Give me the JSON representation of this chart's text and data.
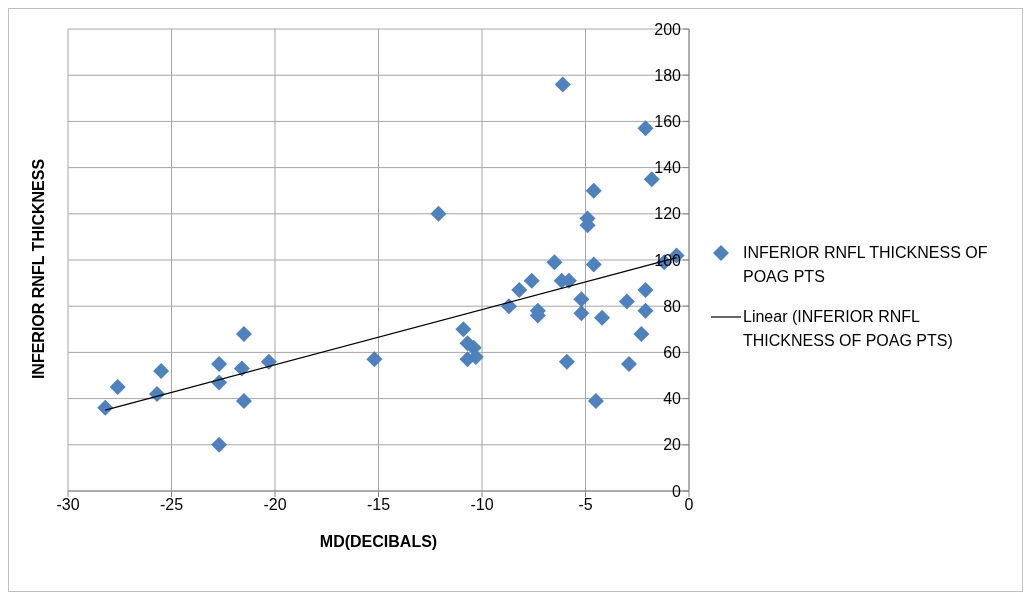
{
  "chart_data": {
    "type": "scatter",
    "xlabel": "MD(DECIBALS)",
    "ylabel": "INFERIOR RNFL THICKNESS",
    "xlim": [
      -30,
      0
    ],
    "xticks": [
      -30,
      -25,
      -20,
      -15,
      -10,
      -5,
      0
    ],
    "ylim": [
      0,
      200
    ],
    "yticks": [
      0,
      20,
      40,
      60,
      80,
      100,
      120,
      140,
      160,
      180,
      200
    ],
    "grid": true,
    "legend": "right",
    "series": [
      {
        "name": "INFERIOR RNFL THICKNESS OF POAG PTS",
        "marker": "diamond",
        "color": "#4f81bd",
        "x": [
          -28.2,
          -27.6,
          -25.7,
          -25.5,
          -22.7,
          -22.7,
          -22.7,
          -21.6,
          -21.5,
          -21.5,
          -20.3,
          -15.2,
          -12.1,
          -10.9,
          -10.7,
          -10.7,
          -10.4,
          -10.3,
          -8.7,
          -8.2,
          -7.6,
          -7.3,
          -7.3,
          -6.5,
          -6.1,
          -6.15,
          -5.8,
          -5.9,
          -5.2,
          -5.2,
          -4.9,
          -4.9,
          -4.6,
          -4.6,
          -4.5,
          -4.2,
          -3.0,
          -2.9,
          -2.1,
          -2.1,
          -2.3,
          -1.8,
          -2.1,
          -1.2,
          -0.6
        ],
        "values": [
          36,
          45,
          42,
          52,
          55,
          47,
          20,
          53,
          68,
          39,
          56,
          57,
          120,
          70,
          64,
          57,
          62,
          58,
          80,
          87,
          91,
          76,
          78,
          99,
          176,
          91,
          91,
          56,
          83,
          77,
          118,
          115,
          130,
          98,
          39,
          75,
          82,
          55,
          87,
          78,
          68,
          135,
          157,
          99,
          102
        ]
      },
      {
        "name": "Linear (INFERIOR RNFL THICKNESS OF POAG PTS)",
        "type": "line",
        "marker": "none",
        "color": "#000000",
        "x": [
          -28.2,
          -0.6
        ],
        "values": [
          35,
          101
        ]
      }
    ]
  }
}
